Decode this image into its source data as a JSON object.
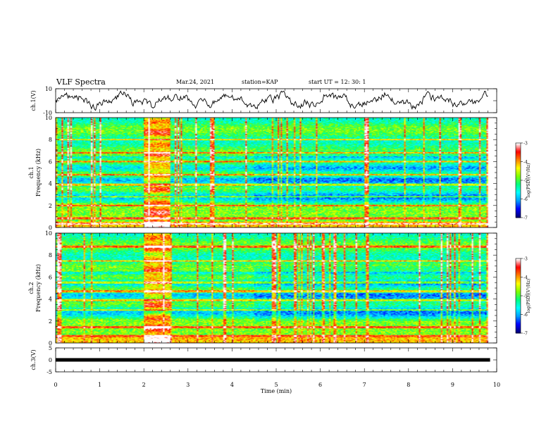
{
  "header": {
    "title": "VLF Spectra",
    "date": "Mar.24, 2021",
    "station": "station=KAP",
    "start_ut": "start UT =  12: 30: 1"
  },
  "colors": {
    "colormap": [
      "#00007a",
      "#0000ff",
      "#00a0ff",
      "#00ffff",
      "#00ff80",
      "#80ff00",
      "#ffff00",
      "#ff8000",
      "#ff0000",
      "#ffffff"
    ],
    "waveform": "#000000"
  },
  "chart_data": [
    {
      "type": "line",
      "name": "ch1-waveform",
      "ylabel": "ch.1(V)",
      "ylim": [
        -10,
        10
      ],
      "yticks": [
        "10",
        "-10"
      ],
      "x_range_min": [
        0,
        10
      ],
      "note_shape": "noisy oscillation between about -5 and +5 V over the record"
    },
    {
      "type": "heatmap",
      "name": "ch1-spectrogram",
      "ylabel_lines": [
        "ch.1",
        "Frequency (kHz)"
      ],
      "ylim_khz": [
        0,
        10
      ],
      "yticks": [
        "0",
        "2",
        "4",
        "6",
        "8",
        "10"
      ],
      "x_range_min": [
        0,
        10
      ],
      "data_end_min": 9.8,
      "colorbar": {
        "label": "log(PSD)(V²/Hz)",
        "range": [
          -7,
          -3
        ],
        "ticks": [
          "-3",
          "-4",
          "-5",
          "-6",
          "-7"
        ]
      },
      "notable_features": [
        "strong broadband emission between 2.0 and 2.6 min",
        "horizontal tonal lines near 2, 4, 6 and 7 kHz"
      ]
    },
    {
      "type": "heatmap",
      "name": "ch2-spectrogram",
      "ylabel_lines": [
        "ch.2",
        "Frequency (kHz)"
      ],
      "ylim_khz": [
        0,
        10
      ],
      "yticks": [
        "0",
        "2",
        "4",
        "6",
        "8",
        "10"
      ],
      "x_range_min": [
        0,
        10
      ],
      "data_end_min": 9.8,
      "colorbar": {
        "label": "log(PSD)(V²/Hz)",
        "range": [
          -7,
          -3
        ],
        "ticks": [
          "-3",
          "-4",
          "-5",
          "-6",
          "-7"
        ]
      },
      "notable_features": [
        "strong broadband emission between 2.0 and 2.6 min",
        "horizontal tonal lines near 3, 4, 5 and 9 kHz"
      ]
    },
    {
      "type": "line",
      "name": "ch3-trace",
      "ylabel": "ch.3(V)",
      "ylim": [
        -5,
        5
      ],
      "yticks": [
        "5",
        "0",
        "-5"
      ],
      "x_range_min": [
        0,
        10
      ],
      "approx_value": 0,
      "note_shape": "flat thick line slightly above 0 V"
    }
  ],
  "xaxis": {
    "label": "Time (min)",
    "ticks": [
      "0",
      "1",
      "2",
      "3",
      "4",
      "5",
      "6",
      "7",
      "8",
      "9",
      "10"
    ]
  }
}
